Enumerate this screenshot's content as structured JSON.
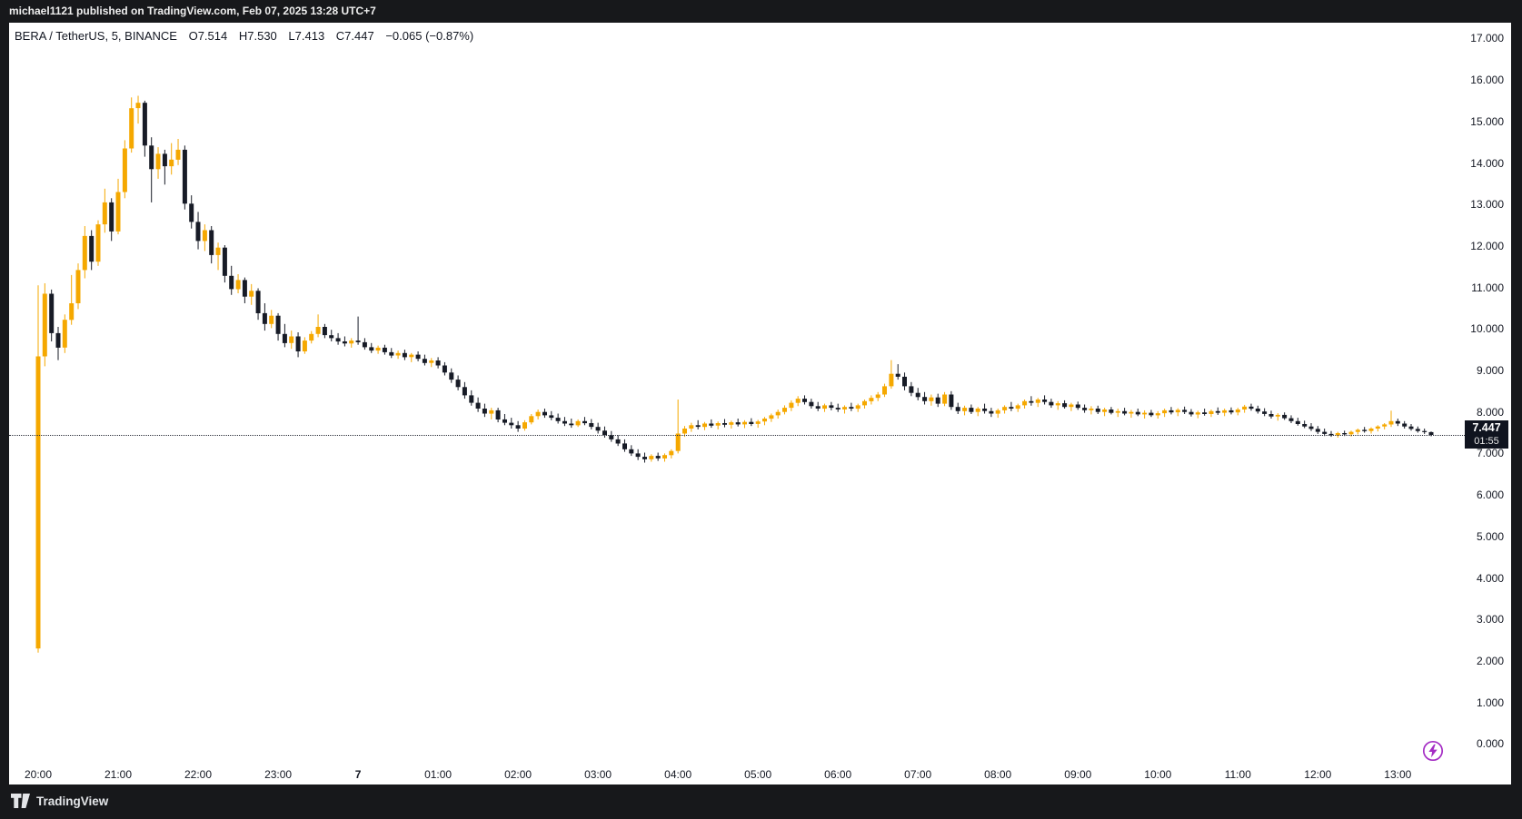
{
  "header": {
    "publish_text": "michael1121 published on TradingView.com, Feb 07, 2025 13:28 UTC+7"
  },
  "legend": {
    "symbol": "BERA / TetherUS, 5, BINANCE",
    "open": "O7.514",
    "high": "H7.530",
    "low": "L7.413",
    "close": "C7.447",
    "change": "−0.065 (−0.87%)"
  },
  "price_scale": {
    "labels": [
      "17.000",
      "16.000",
      "15.000",
      "14.000",
      "13.000",
      "12.000",
      "11.000",
      "10.000",
      "9.000",
      "8.000",
      "7.000",
      "6.000",
      "5.000",
      "4.000",
      "3.000",
      "2.000",
      "1.000",
      "0.000"
    ]
  },
  "time_scale": {
    "ticks": [
      {
        "label": "20:00",
        "candle_index": 0,
        "bold": false
      },
      {
        "label": "21:00",
        "candle_index": 12,
        "bold": false
      },
      {
        "label": "22:00",
        "candle_index": 24,
        "bold": false
      },
      {
        "label": "23:00",
        "candle_index": 36,
        "bold": false
      },
      {
        "label": "7",
        "candle_index": 48,
        "bold": true
      },
      {
        "label": "01:00",
        "candle_index": 60,
        "bold": false
      },
      {
        "label": "02:00",
        "candle_index": 72,
        "bold": false
      },
      {
        "label": "03:00",
        "candle_index": 84,
        "bold": false
      },
      {
        "label": "04:00",
        "candle_index": 96,
        "bold": false
      },
      {
        "label": "05:00",
        "candle_index": 108,
        "bold": false
      },
      {
        "label": "06:00",
        "candle_index": 120,
        "bold": false
      },
      {
        "label": "07:00",
        "candle_index": 132,
        "bold": false
      },
      {
        "label": "08:00",
        "candle_index": 144,
        "bold": false
      },
      {
        "label": "09:00",
        "candle_index": 156,
        "bold": false
      },
      {
        "label": "10:00",
        "candle_index": 168,
        "bold": false
      },
      {
        "label": "11:00",
        "candle_index": 180,
        "bold": false
      },
      {
        "label": "12:00",
        "candle_index": 192,
        "bold": false
      },
      {
        "label": "13:00",
        "candle_index": 204,
        "bold": false
      }
    ]
  },
  "price_line": {
    "price": 7.447,
    "label": "7.447",
    "countdown": "01:55"
  },
  "footer": {
    "logo_text": "TradingView"
  },
  "boost": {
    "color": "#a42cc4"
  },
  "chart_data": {
    "type": "candlestick",
    "title": "BERA / TetherUS, 5, BINANCE",
    "interval": "5 minutes",
    "x_range": [
      "20:00",
      "13:25 (+1 day)"
    ],
    "ylim": [
      0,
      17
    ],
    "grid": false,
    "up_color": "#f5a800",
    "down_color": "#171b26",
    "last_candle": {
      "open": 7.514,
      "high": 7.53,
      "low": 7.413,
      "close": 7.447,
      "change": -0.065,
      "change_pct": -0.87
    },
    "ohlc_format": [
      "open",
      "high",
      "low",
      "close"
    ],
    "ohlc": [
      [
        2.3,
        11.05,
        2.2,
        9.34
      ],
      [
        9.34,
        11.1,
        9.1,
        10.85
      ],
      [
        10.85,
        10.95,
        9.7,
        9.9
      ],
      [
        9.9,
        10.05,
        9.25,
        9.55
      ],
      [
        9.55,
        10.35,
        9.42,
        10.22
      ],
      [
        10.22,
        11.3,
        10.1,
        10.62
      ],
      [
        10.62,
        11.58,
        10.48,
        11.42
      ],
      [
        11.42,
        12.48,
        11.22,
        12.24
      ],
      [
        12.24,
        12.38,
        11.42,
        11.62
      ],
      [
        11.62,
        12.62,
        11.52,
        12.52
      ],
      [
        12.52,
        13.38,
        12.32,
        13.05
      ],
      [
        13.05,
        13.15,
        12.12,
        12.35
      ],
      [
        12.35,
        13.62,
        12.28,
        13.3
      ],
      [
        13.3,
        14.55,
        13.15,
        14.35
      ],
      [
        14.35,
        15.58,
        14.25,
        15.32
      ],
      [
        15.32,
        15.62,
        14.95,
        15.45
      ],
      [
        15.45,
        15.5,
        14.15,
        14.42
      ],
      [
        14.42,
        14.62,
        13.05,
        13.85
      ],
      [
        13.85,
        14.38,
        13.62,
        14.22
      ],
      [
        14.22,
        14.32,
        13.48,
        13.92
      ],
      [
        13.92,
        14.48,
        13.72,
        14.08
      ],
      [
        14.08,
        14.58,
        13.95,
        14.32
      ],
      [
        14.32,
        14.42,
        12.88,
        13.02
      ],
      [
        13.02,
        13.22,
        12.42,
        12.58
      ],
      [
        12.58,
        12.82,
        11.92,
        12.12
      ],
      [
        12.12,
        12.52,
        11.88,
        12.38
      ],
      [
        12.38,
        12.48,
        11.58,
        11.78
      ],
      [
        11.78,
        12.08,
        11.42,
        11.96
      ],
      [
        11.96,
        12.02,
        11.12,
        11.28
      ],
      [
        11.28,
        11.52,
        10.82,
        10.96
      ],
      [
        10.96,
        11.32,
        10.86,
        11.18
      ],
      [
        11.18,
        11.24,
        10.62,
        10.78
      ],
      [
        10.78,
        11.08,
        10.58,
        10.92
      ],
      [
        10.92,
        10.98,
        10.22,
        10.38
      ],
      [
        10.38,
        10.62,
        9.96,
        10.12
      ],
      [
        10.12,
        10.46,
        10.02,
        10.32
      ],
      [
        10.32,
        10.38,
        9.72,
        9.88
      ],
      [
        9.88,
        10.12,
        9.56,
        9.66
      ],
      [
        9.66,
        9.96,
        9.52,
        9.82
      ],
      [
        9.82,
        9.92,
        9.32,
        9.46
      ],
      [
        9.46,
        9.8,
        9.4,
        9.72
      ],
      [
        9.72,
        9.95,
        9.65,
        9.88
      ],
      [
        9.88,
        10.35,
        9.8,
        10.05
      ],
      [
        10.05,
        10.12,
        9.78,
        9.85
      ],
      [
        9.85,
        9.98,
        9.7,
        9.78
      ],
      [
        9.78,
        9.9,
        9.62,
        9.7
      ],
      [
        9.7,
        9.82,
        9.58,
        9.65
      ],
      [
        9.65,
        9.78,
        9.55,
        9.72
      ],
      [
        9.72,
        10.3,
        9.62,
        9.68
      ],
      [
        9.68,
        9.78,
        9.5,
        9.56
      ],
      [
        9.56,
        9.66,
        9.42,
        9.48
      ],
      [
        9.48,
        9.6,
        9.4,
        9.55
      ],
      [
        9.55,
        9.62,
        9.38,
        9.44
      ],
      [
        9.44,
        9.54,
        9.3,
        9.36
      ],
      [
        9.36,
        9.48,
        9.28,
        9.42
      ],
      [
        9.42,
        9.5,
        9.25,
        9.32
      ],
      [
        9.32,
        9.42,
        9.2,
        9.38
      ],
      [
        9.38,
        9.46,
        9.22,
        9.28
      ],
      [
        9.28,
        9.38,
        9.12,
        9.18
      ],
      [
        9.18,
        9.3,
        9.08,
        9.24
      ],
      [
        9.24,
        9.32,
        9.05,
        9.12
      ],
      [
        9.12,
        9.2,
        8.88,
        8.95
      ],
      [
        8.95,
        9.05,
        8.7,
        8.78
      ],
      [
        8.78,
        8.88,
        8.52,
        8.6
      ],
      [
        8.6,
        8.72,
        8.32,
        8.4
      ],
      [
        8.4,
        8.52,
        8.15,
        8.22
      ],
      [
        8.22,
        8.35,
        8.0,
        8.08
      ],
      [
        8.08,
        8.2,
        7.88,
        7.96
      ],
      [
        7.96,
        8.1,
        7.82,
        8.04
      ],
      [
        8.04,
        8.1,
        7.75,
        7.82
      ],
      [
        7.82,
        7.95,
        7.68,
        7.74
      ],
      [
        7.74,
        7.86,
        7.6,
        7.68
      ],
      [
        7.68,
        7.78,
        7.52,
        7.6
      ],
      [
        7.6,
        7.8,
        7.55,
        7.75
      ],
      [
        7.75,
        7.95,
        7.7,
        7.9
      ],
      [
        7.9,
        8.06,
        7.82,
        8.0
      ],
      [
        8.0,
        8.08,
        7.86,
        7.92
      ],
      [
        7.92,
        8.02,
        7.8,
        7.86
      ],
      [
        7.86,
        7.96,
        7.72,
        7.78
      ],
      [
        7.78,
        7.88,
        7.66,
        7.72
      ],
      [
        7.72,
        7.84,
        7.62,
        7.68
      ],
      [
        7.68,
        7.82,
        7.64,
        7.78
      ],
      [
        7.78,
        7.88,
        7.68,
        7.73
      ],
      [
        7.73,
        7.83,
        7.58,
        7.64
      ],
      [
        7.64,
        7.74,
        7.48,
        7.55
      ],
      [
        7.55,
        7.65,
        7.38,
        7.44
      ],
      [
        7.44,
        7.54,
        7.28,
        7.34
      ],
      [
        7.34,
        7.44,
        7.18,
        7.24
      ],
      [
        7.24,
        7.34,
        7.04,
        7.1
      ],
      [
        7.1,
        7.2,
        6.94,
        7.0
      ],
      [
        7.0,
        7.1,
        6.84,
        6.92
      ],
      [
        6.92,
        7.02,
        6.78,
        6.86
      ],
      [
        6.86,
        6.98,
        6.8,
        6.94
      ],
      [
        6.94,
        7.02,
        6.82,
        6.88
      ],
      [
        6.88,
        7.0,
        6.8,
        6.96
      ],
      [
        6.96,
        7.1,
        6.88,
        7.06
      ],
      [
        7.06,
        8.3,
        7.0,
        7.48
      ],
      [
        7.48,
        7.66,
        7.4,
        7.6
      ],
      [
        7.6,
        7.74,
        7.52,
        7.68
      ],
      [
        7.68,
        7.8,
        7.58,
        7.64
      ],
      [
        7.64,
        7.76,
        7.56,
        7.72
      ],
      [
        7.72,
        7.82,
        7.62,
        7.67
      ],
      [
        7.67,
        7.77,
        7.58,
        7.73
      ],
      [
        7.73,
        7.83,
        7.63,
        7.69
      ],
      [
        7.69,
        7.79,
        7.6,
        7.75
      ],
      [
        7.75,
        7.84,
        7.65,
        7.7
      ],
      [
        7.7,
        7.8,
        7.61,
        7.76
      ],
      [
        7.76,
        7.85,
        7.66,
        7.71
      ],
      [
        7.71,
        7.81,
        7.62,
        7.77
      ],
      [
        7.77,
        7.88,
        7.68,
        7.84
      ],
      [
        7.84,
        7.96,
        7.76,
        7.92
      ],
      [
        7.92,
        8.06,
        7.84,
        8.0
      ],
      [
        8.0,
        8.16,
        7.94,
        8.1
      ],
      [
        8.1,
        8.28,
        8.02,
        8.22
      ],
      [
        8.22,
        8.38,
        8.14,
        8.32
      ],
      [
        8.32,
        8.4,
        8.18,
        8.24
      ],
      [
        8.24,
        8.32,
        8.08,
        8.14
      ],
      [
        8.14,
        8.24,
        8.02,
        8.08
      ],
      [
        8.08,
        8.2,
        8.0,
        8.16
      ],
      [
        8.16,
        8.24,
        8.04,
        8.1
      ],
      [
        8.1,
        8.2,
        8.0,
        8.06
      ],
      [
        8.06,
        8.16,
        7.96,
        8.12
      ],
      [
        8.12,
        8.22,
        8.02,
        8.08
      ],
      [
        8.08,
        8.2,
        8.0,
        8.16
      ],
      [
        8.16,
        8.3,
        8.08,
        8.26
      ],
      [
        8.26,
        8.4,
        8.18,
        8.34
      ],
      [
        8.34,
        8.48,
        8.26,
        8.42
      ],
      [
        8.42,
        8.68,
        8.36,
        8.62
      ],
      [
        8.62,
        9.25,
        8.56,
        8.92
      ],
      [
        8.92,
        9.15,
        8.78,
        8.85
      ],
      [
        8.85,
        8.95,
        8.52,
        8.62
      ],
      [
        8.62,
        8.72,
        8.38,
        8.46
      ],
      [
        8.46,
        8.58,
        8.28,
        8.36
      ],
      [
        8.36,
        8.48,
        8.18,
        8.26
      ],
      [
        8.26,
        8.42,
        8.15,
        8.35
      ],
      [
        8.35,
        8.44,
        8.12,
        8.2
      ],
      [
        8.2,
        8.48,
        8.14,
        8.42
      ],
      [
        8.42,
        8.5,
        8.05,
        8.12
      ],
      [
        8.12,
        8.22,
        7.95,
        8.02
      ],
      [
        8.02,
        8.15,
        7.92,
        8.1
      ],
      [
        8.1,
        8.18,
        7.95,
        8.0
      ],
      [
        8.0,
        8.12,
        7.9,
        8.08
      ],
      [
        8.08,
        8.2,
        7.96,
        8.02
      ],
      [
        8.02,
        8.1,
        7.88,
        7.96
      ],
      [
        7.96,
        8.08,
        7.86,
        8.04
      ],
      [
        8.04,
        8.16,
        7.96,
        8.12
      ],
      [
        8.12,
        8.24,
        8.02,
        8.08
      ],
      [
        8.08,
        8.2,
        8.0,
        8.16
      ],
      [
        8.16,
        8.3,
        8.08,
        8.26
      ],
      [
        8.26,
        8.38,
        8.15,
        8.22
      ],
      [
        8.22,
        8.34,
        8.12,
        8.3
      ],
      [
        8.3,
        8.4,
        8.18,
        8.24
      ],
      [
        8.24,
        8.32,
        8.1,
        8.16
      ],
      [
        8.16,
        8.26,
        8.05,
        8.21
      ],
      [
        8.21,
        8.28,
        8.08,
        8.12
      ],
      [
        8.12,
        8.22,
        8.02,
        8.18
      ],
      [
        8.18,
        8.25,
        8.05,
        8.1
      ],
      [
        8.1,
        8.18,
        7.98,
        8.04
      ],
      [
        8.04,
        8.14,
        7.94,
        8.08
      ],
      [
        8.08,
        8.15,
        7.95,
        8.0
      ],
      [
        8.0,
        8.1,
        7.9,
        8.06
      ],
      [
        8.06,
        8.12,
        7.94,
        7.98
      ],
      [
        7.98,
        8.08,
        7.88,
        8.02
      ],
      [
        8.02,
        8.1,
        7.92,
        7.96
      ],
      [
        7.96,
        8.05,
        7.86,
        8.0
      ],
      [
        8.0,
        8.08,
        7.9,
        7.94
      ],
      [
        7.94,
        8.04,
        7.84,
        7.98
      ],
      [
        7.98,
        8.05,
        7.88,
        7.92
      ],
      [
        7.92,
        8.02,
        7.84,
        7.97
      ],
      [
        7.97,
        8.08,
        7.88,
        8.04
      ],
      [
        8.04,
        8.12,
        7.94,
        7.99
      ],
      [
        7.99,
        8.09,
        7.9,
        8.05
      ],
      [
        8.05,
        8.13,
        7.95,
        8.0
      ],
      [
        8.0,
        8.07,
        7.89,
        7.94
      ],
      [
        7.94,
        8.03,
        7.85,
        7.99
      ],
      [
        7.99,
        8.08,
        7.91,
        7.95
      ],
      [
        7.95,
        8.06,
        7.88,
        8.02
      ],
      [
        8.02,
        8.11,
        7.93,
        7.98
      ],
      [
        7.98,
        8.08,
        7.9,
        8.04
      ],
      [
        8.04,
        8.11,
        7.94,
        7.99
      ],
      [
        7.99,
        8.1,
        7.92,
        8.06
      ],
      [
        8.06,
        8.17,
        7.98,
        8.13
      ],
      [
        8.13,
        8.2,
        8.03,
        8.08
      ],
      [
        8.08,
        8.15,
        7.96,
        8.01
      ],
      [
        8.01,
        8.09,
        7.9,
        7.95
      ],
      [
        7.95,
        8.03,
        7.84,
        7.89
      ],
      [
        7.89,
        7.97,
        7.79,
        7.93
      ],
      [
        7.93,
        7.99,
        7.81,
        7.85
      ],
      [
        7.85,
        7.92,
        7.73,
        7.78
      ],
      [
        7.78,
        7.86,
        7.67,
        7.71
      ],
      [
        7.71,
        7.79,
        7.61,
        7.65
      ],
      [
        7.65,
        7.73,
        7.54,
        7.59
      ],
      [
        7.59,
        7.66,
        7.47,
        7.52
      ],
      [
        7.52,
        7.6,
        7.42,
        7.47
      ],
      [
        7.47,
        7.54,
        7.4,
        7.44
      ],
      [
        7.44,
        7.52,
        7.38,
        7.49
      ],
      [
        7.49,
        7.55,
        7.42,
        7.46
      ],
      [
        7.46,
        7.55,
        7.41,
        7.52
      ],
      [
        7.52,
        7.6,
        7.46,
        7.57
      ],
      [
        7.57,
        7.64,
        7.5,
        7.54
      ],
      [
        7.54,
        7.63,
        7.48,
        7.6
      ],
      [
        7.6,
        7.68,
        7.53,
        7.65
      ],
      [
        7.65,
        7.73,
        7.58,
        7.7
      ],
      [
        7.7,
        8.03,
        7.64,
        7.78
      ],
      [
        7.78,
        7.84,
        7.66,
        7.72
      ],
      [
        7.72,
        7.78,
        7.6,
        7.65
      ],
      [
        7.65,
        7.71,
        7.55,
        7.59
      ],
      [
        7.59,
        7.65,
        7.5,
        7.54
      ],
      [
        7.54,
        7.6,
        7.47,
        7.514
      ],
      [
        7.514,
        7.53,
        7.413,
        7.447
      ]
    ]
  }
}
